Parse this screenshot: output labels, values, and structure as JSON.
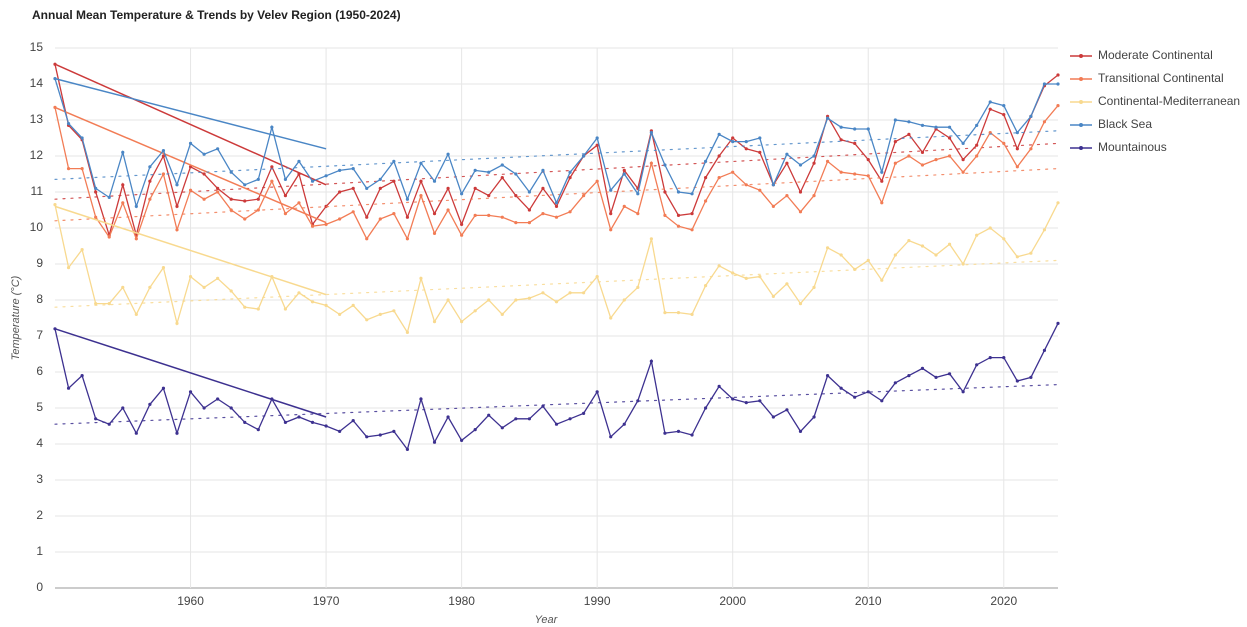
{
  "chart_data": {
    "type": "line",
    "title": "Annual Mean Temperature & Trends by Velev Region (1950-2024)",
    "x_label": "Year",
    "y_label": "Temperature (°C)",
    "x": [
      1950,
      1951,
      1952,
      1953,
      1954,
      1955,
      1956,
      1957,
      1958,
      1959,
      1960,
      1961,
      1962,
      1963,
      1964,
      1965,
      1966,
      1967,
      1968,
      1969,
      1970,
      1971,
      1972,
      1973,
      1974,
      1975,
      1976,
      1977,
      1978,
      1979,
      1980,
      1981,
      1982,
      1983,
      1984,
      1985,
      1986,
      1987,
      1988,
      1989,
      1990,
      1991,
      1992,
      1993,
      1994,
      1995,
      1996,
      1997,
      1998,
      1999,
      2000,
      2001,
      2002,
      2003,
      2004,
      2005,
      2006,
      2007,
      2008,
      2009,
      2010,
      2011,
      2012,
      2013,
      2014,
      2015,
      2016,
      2017,
      2018,
      2019,
      2020,
      2021,
      2022,
      2023,
      2024
    ],
    "xlim": [
      1950,
      2024
    ],
    "xticks": [
      1960,
      1970,
      1980,
      1990,
      2000,
      2010,
      2020
    ],
    "ylim": [
      0,
      15
    ],
    "yticks": [
      0,
      1,
      2,
      3,
      4,
      5,
      6,
      7,
      8,
      9,
      10,
      11,
      12,
      13,
      14,
      15
    ],
    "grid": true,
    "legend": "right",
    "trend_x": [
      1950,
      2024
    ],
    "segment_x": [
      1950,
      1970
    ],
    "series": [
      {
        "name": "Moderate Continental",
        "color": "#cc3a3a",
        "values": [
          14.55,
          12.85,
          12.45,
          11.0,
          9.8,
          11.2,
          9.8,
          11.3,
          12.0,
          10.6,
          11.7,
          11.5,
          11.1,
          10.8,
          10.75,
          10.8,
          11.7,
          10.9,
          11.5,
          10.1,
          10.6,
          11.0,
          11.1,
          10.3,
          11.1,
          11.3,
          10.3,
          11.3,
          10.4,
          11.1,
          10.1,
          11.1,
          10.9,
          11.4,
          10.9,
          10.5,
          11.1,
          10.6,
          11.4,
          12.0,
          12.3,
          10.4,
          11.6,
          11.1,
          12.7,
          11.0,
          10.35,
          10.4,
          11.4,
          12.0,
          12.5,
          12.2,
          12.1,
          11.2,
          11.8,
          11.0,
          11.8,
          13.1,
          12.45,
          12.35,
          11.9,
          11.3,
          12.4,
          12.6,
          12.1,
          12.75,
          12.5,
          11.9,
          12.3,
          13.3,
          13.15,
          12.2,
          13.1,
          13.95,
          14.25
        ],
        "trend": [
          10.8,
          12.35
        ],
        "segment": [
          14.55,
          11.2
        ]
      },
      {
        "name": "Transitional Continental",
        "color": "#f27c55",
        "values": [
          13.35,
          11.65,
          11.65,
          10.3,
          9.75,
          10.7,
          9.7,
          10.8,
          11.5,
          9.95,
          11.05,
          10.8,
          11.0,
          10.5,
          10.25,
          10.5,
          11.3,
          10.4,
          10.7,
          10.05,
          10.1,
          10.25,
          10.45,
          9.7,
          10.25,
          10.4,
          9.7,
          10.9,
          9.85,
          10.5,
          9.8,
          10.35,
          10.35,
          10.3,
          10.15,
          10.15,
          10.4,
          10.3,
          10.45,
          10.9,
          11.3,
          9.95,
          10.6,
          10.4,
          11.8,
          10.35,
          10.05,
          9.95,
          10.75,
          11.4,
          11.55,
          11.2,
          11.05,
          10.6,
          10.9,
          10.45,
          10.9,
          11.85,
          11.55,
          11.5,
          11.45,
          10.7,
          11.8,
          12.0,
          11.75,
          11.9,
          12.0,
          11.55,
          12.0,
          12.65,
          12.35,
          11.7,
          12.2,
          12.95,
          13.4
        ],
        "trend": [
          10.2,
          11.65
        ],
        "segment": [
          13.35,
          10.15
        ]
      },
      {
        "name": "Continental-Mediterranean",
        "color": "#f8d98f",
        "values": [
          10.65,
          8.9,
          9.4,
          7.9,
          7.9,
          8.35,
          7.6,
          8.35,
          8.9,
          7.35,
          8.65,
          8.35,
          8.6,
          8.25,
          7.8,
          7.75,
          8.65,
          7.75,
          8.2,
          7.95,
          7.85,
          7.6,
          7.85,
          7.45,
          7.6,
          7.7,
          7.1,
          8.6,
          7.4,
          8.0,
          7.4,
          7.7,
          8.0,
          7.6,
          8.0,
          8.05,
          8.2,
          7.95,
          8.2,
          8.2,
          8.65,
          7.5,
          8.0,
          8.35,
          9.7,
          7.65,
          7.65,
          7.6,
          8.4,
          8.95,
          8.75,
          8.6,
          8.65,
          8.1,
          8.45,
          7.9,
          8.35,
          9.45,
          9.25,
          8.85,
          9.1,
          8.55,
          9.25,
          9.65,
          9.5,
          9.25,
          9.55,
          9.0,
          9.8,
          10.0,
          9.7,
          9.2,
          9.3,
          9.95,
          10.7
        ],
        "trend": [
          7.8,
          9.1
        ],
        "segment": [
          10.6,
          8.15
        ]
      },
      {
        "name": "Black Sea",
        "color": "#4a86c5",
        "values": [
          14.15,
          12.9,
          12.5,
          11.1,
          10.85,
          12.1,
          10.6,
          11.7,
          12.15,
          11.2,
          12.35,
          12.05,
          12.2,
          11.55,
          11.2,
          11.35,
          12.8,
          11.35,
          11.85,
          11.3,
          11.45,
          11.6,
          11.65,
          11.1,
          11.35,
          11.85,
          10.8,
          11.8,
          11.3,
          12.05,
          10.95,
          11.6,
          11.55,
          11.75,
          11.5,
          11.0,
          11.6,
          10.7,
          11.55,
          12.0,
          12.5,
          11.05,
          11.5,
          10.95,
          12.65,
          11.75,
          11.0,
          10.95,
          11.85,
          12.6,
          12.4,
          12.4,
          12.5,
          11.2,
          12.05,
          11.75,
          12.0,
          13.05,
          12.8,
          12.75,
          12.75,
          11.55,
          13.0,
          12.95,
          12.85,
          12.8,
          12.8,
          12.35,
          12.85,
          13.5,
          13.4,
          12.65,
          13.1,
          14.0,
          14.0
        ],
        "trend": [
          11.35,
          12.7
        ],
        "segment": [
          14.15,
          12.2
        ]
      },
      {
        "name": "Mountainous",
        "color": "#3d3190",
        "values": [
          7.2,
          5.55,
          5.9,
          4.7,
          4.55,
          5.0,
          4.3,
          5.1,
          5.55,
          4.3,
          5.45,
          5.0,
          5.25,
          5.0,
          4.6,
          4.4,
          5.25,
          4.6,
          4.75,
          4.6,
          4.5,
          4.35,
          4.65,
          4.2,
          4.25,
          4.35,
          3.85,
          5.25,
          4.05,
          4.75,
          4.1,
          4.4,
          4.8,
          4.45,
          4.7,
          4.7,
          5.05,
          4.55,
          4.7,
          4.85,
          5.45,
          4.2,
          4.55,
          5.2,
          6.3,
          4.3,
          4.35,
          4.25,
          5.0,
          5.6,
          5.25,
          5.15,
          5.2,
          4.75,
          4.95,
          4.35,
          4.75,
          5.9,
          5.55,
          5.3,
          5.45,
          5.2,
          5.7,
          5.9,
          6.1,
          5.85,
          5.95,
          5.45,
          6.2,
          6.4,
          6.4,
          5.75,
          5.85,
          6.6,
          7.35
        ],
        "trend": [
          4.55,
          5.65
        ],
        "segment": [
          7.2,
          4.75
        ]
      }
    ]
  }
}
